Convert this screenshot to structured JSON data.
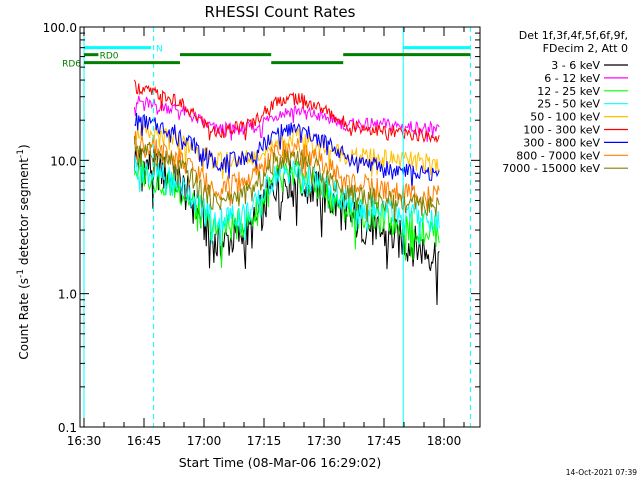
{
  "chart_data": {
    "type": "line",
    "title": "RHESSI Count Rates",
    "xlabel": "Start Time (08-Mar-06 16:29:02)",
    "ylabel_main": "Count Rate (s",
    "ylabel_exp1": "-1",
    "ylabel_mid": " detector segment",
    "ylabel_exp2": "-1",
    "ylabel_end": ")",
    "y_scale": "log",
    "ylim": [
      0.1,
      100
    ],
    "xlim": [
      "16:29",
      "18:09"
    ],
    "x_ticks": [
      "16:30",
      "16:45",
      "17:00",
      "17:15",
      "17:30",
      "17:45",
      "18:00"
    ],
    "y_ticks": [
      "100.0",
      "10.0",
      "1.0",
      "0.1"
    ],
    "legend_header": [
      "Det 1f,3f,4f,5f,6f,9f,",
      "FDecim 2, Att 0"
    ],
    "legend_position": "right",
    "series": [
      {
        "name": "3 - 6 keV",
        "color": "#000000",
        "values": [
          [
            16.71,
            10.5
          ],
          [
            16.9,
            6.8
          ],
          [
            17.05,
            2.3
          ],
          [
            17.2,
            3.0
          ],
          [
            17.3,
            6.8
          ],
          [
            17.38,
            7.4
          ],
          [
            17.5,
            5.5
          ],
          [
            17.6,
            3.8
          ],
          [
            17.75,
            2.8
          ],
          [
            17.9,
            2.2
          ],
          [
            17.98,
            1.9
          ]
        ]
      },
      {
        "name": "6 - 12 keV",
        "color": "#ff00ff",
        "values": [
          [
            16.71,
            28.0
          ],
          [
            16.9,
            24.0
          ],
          [
            17.05,
            17.0
          ],
          [
            17.2,
            17.5
          ],
          [
            17.3,
            22.0
          ],
          [
            17.38,
            24.0
          ],
          [
            17.5,
            21.0
          ],
          [
            17.6,
            18.5
          ],
          [
            17.75,
            18.5
          ],
          [
            17.9,
            17.5
          ],
          [
            17.98,
            17.0
          ]
        ]
      },
      {
        "name": "12 - 25 keV",
        "color": "#00ff00",
        "values": [
          [
            16.71,
            8.8
          ],
          [
            16.9,
            6.1
          ],
          [
            17.05,
            2.9
          ],
          [
            17.2,
            3.6
          ],
          [
            17.3,
            7.2
          ],
          [
            17.38,
            7.7
          ],
          [
            17.5,
            5.8
          ],
          [
            17.6,
            4.2
          ],
          [
            17.75,
            3.6
          ],
          [
            17.9,
            3.1
          ],
          [
            17.98,
            2.9
          ]
        ]
      },
      {
        "name": "25 - 50 keV",
        "color": "#00ffff",
        "values": [
          [
            16.71,
            9.2
          ],
          [
            16.9,
            6.6
          ],
          [
            17.05,
            3.6
          ],
          [
            17.2,
            4.2
          ],
          [
            17.3,
            7.8
          ],
          [
            17.38,
            8.4
          ],
          [
            17.5,
            6.4
          ],
          [
            17.6,
            4.9
          ],
          [
            17.75,
            4.3
          ],
          [
            17.9,
            3.9
          ],
          [
            17.98,
            3.6
          ]
        ]
      },
      {
        "name": "50 - 100 keV",
        "color": "#ffc000",
        "values": [
          [
            16.71,
            16.5
          ],
          [
            16.9,
            14.0
          ],
          [
            17.05,
            9.8
          ],
          [
            17.2,
            10.5
          ],
          [
            17.3,
            13.8
          ],
          [
            17.38,
            15.0
          ],
          [
            17.5,
            12.8
          ],
          [
            17.6,
            10.8
          ],
          [
            17.75,
            10.3
          ],
          [
            17.9,
            9.8
          ],
          [
            17.98,
            9.4
          ]
        ]
      },
      {
        "name": "100 - 300 keV",
        "color": "#ff0000",
        "values": [
          [
            16.71,
            36.0
          ],
          [
            16.9,
            27.0
          ],
          [
            17.05,
            16.0
          ],
          [
            17.2,
            19.0
          ],
          [
            17.3,
            28.0
          ],
          [
            17.38,
            30.0
          ],
          [
            17.5,
            24.0
          ],
          [
            17.6,
            18.5
          ],
          [
            17.75,
            16.5
          ],
          [
            17.9,
            15.5
          ],
          [
            17.98,
            15.0
          ]
        ]
      },
      {
        "name": "300 - 800 keV",
        "color": "#0000ff",
        "values": [
          [
            16.71,
            20.5
          ],
          [
            16.9,
            16.0
          ],
          [
            17.05,
            9.5
          ],
          [
            17.2,
            10.8
          ],
          [
            17.3,
            16.0
          ],
          [
            17.38,
            17.5
          ],
          [
            17.5,
            14.0
          ],
          [
            17.6,
            10.5
          ],
          [
            17.75,
            8.8
          ],
          [
            17.9,
            8.0
          ],
          [
            17.98,
            7.8
          ]
        ]
      },
      {
        "name": "800 - 7000 keV",
        "color": "#ff8000",
        "values": [
          [
            16.71,
            14.0
          ],
          [
            16.9,
            10.2
          ],
          [
            17.05,
            6.3
          ],
          [
            17.2,
            7.3
          ],
          [
            17.3,
            11.5
          ],
          [
            17.38,
            12.5
          ],
          [
            17.5,
            9.5
          ],
          [
            17.6,
            7.0
          ],
          [
            17.75,
            6.0
          ],
          [
            17.9,
            5.6
          ],
          [
            17.98,
            5.4
          ]
        ]
      },
      {
        "name": "7000 - 15000 keV",
        "color": "#808000",
        "values": [
          [
            16.71,
            13.0
          ],
          [
            16.9,
            9.0
          ],
          [
            17.05,
            4.8
          ],
          [
            17.2,
            5.8
          ],
          [
            17.3,
            10.0
          ],
          [
            17.38,
            11.0
          ],
          [
            17.5,
            8.0
          ],
          [
            17.6,
            5.8
          ],
          [
            17.75,
            5.0
          ],
          [
            17.9,
            4.6
          ],
          [
            17.98,
            4.4
          ]
        ]
      }
    ],
    "annotations": [
      {
        "text": "N",
        "color": "#00ffff"
      },
      {
        "text": "RD0",
        "color": "#008000"
      },
      {
        "text": "RD6",
        "color": "#008000"
      }
    ],
    "attenuator_bars": [
      {
        "color": "#00ffff",
        "x0": 16.5,
        "x1": 16.78,
        "y": 70
      },
      {
        "color": "#00ffff",
        "x0": 17.83,
        "x1": 18.11,
        "y": 70
      }
    ],
    "decimation_bars": [
      {
        "color": "#008000",
        "x0": 16.5,
        "x1": 16.56,
        "y": 62
      },
      {
        "color": "#008000",
        "x0": 16.5,
        "x1": 16.9,
        "y": 54
      },
      {
        "color": "#008000",
        "x0": 16.9,
        "x1": 17.28,
        "y": 62
      },
      {
        "color": "#008000",
        "x0": 17.28,
        "x1": 17.58,
        "y": 54
      },
      {
        "color": "#008000",
        "x0": 17.58,
        "x1": 18.11,
        "y": 62
      }
    ],
    "vlines": [
      {
        "x": 16.5,
        "color": "#00ffff",
        "style": "solid"
      },
      {
        "x": 16.79,
        "color": "#00ffff",
        "style": "dashed"
      },
      {
        "x": 17.83,
        "color": "#00ffff",
        "style": "solid"
      },
      {
        "x": 18.11,
        "color": "#00ffff",
        "style": "dashed"
      }
    ],
    "grid": false
  },
  "footer_timestamp": "14-Oct-2021 07:39"
}
